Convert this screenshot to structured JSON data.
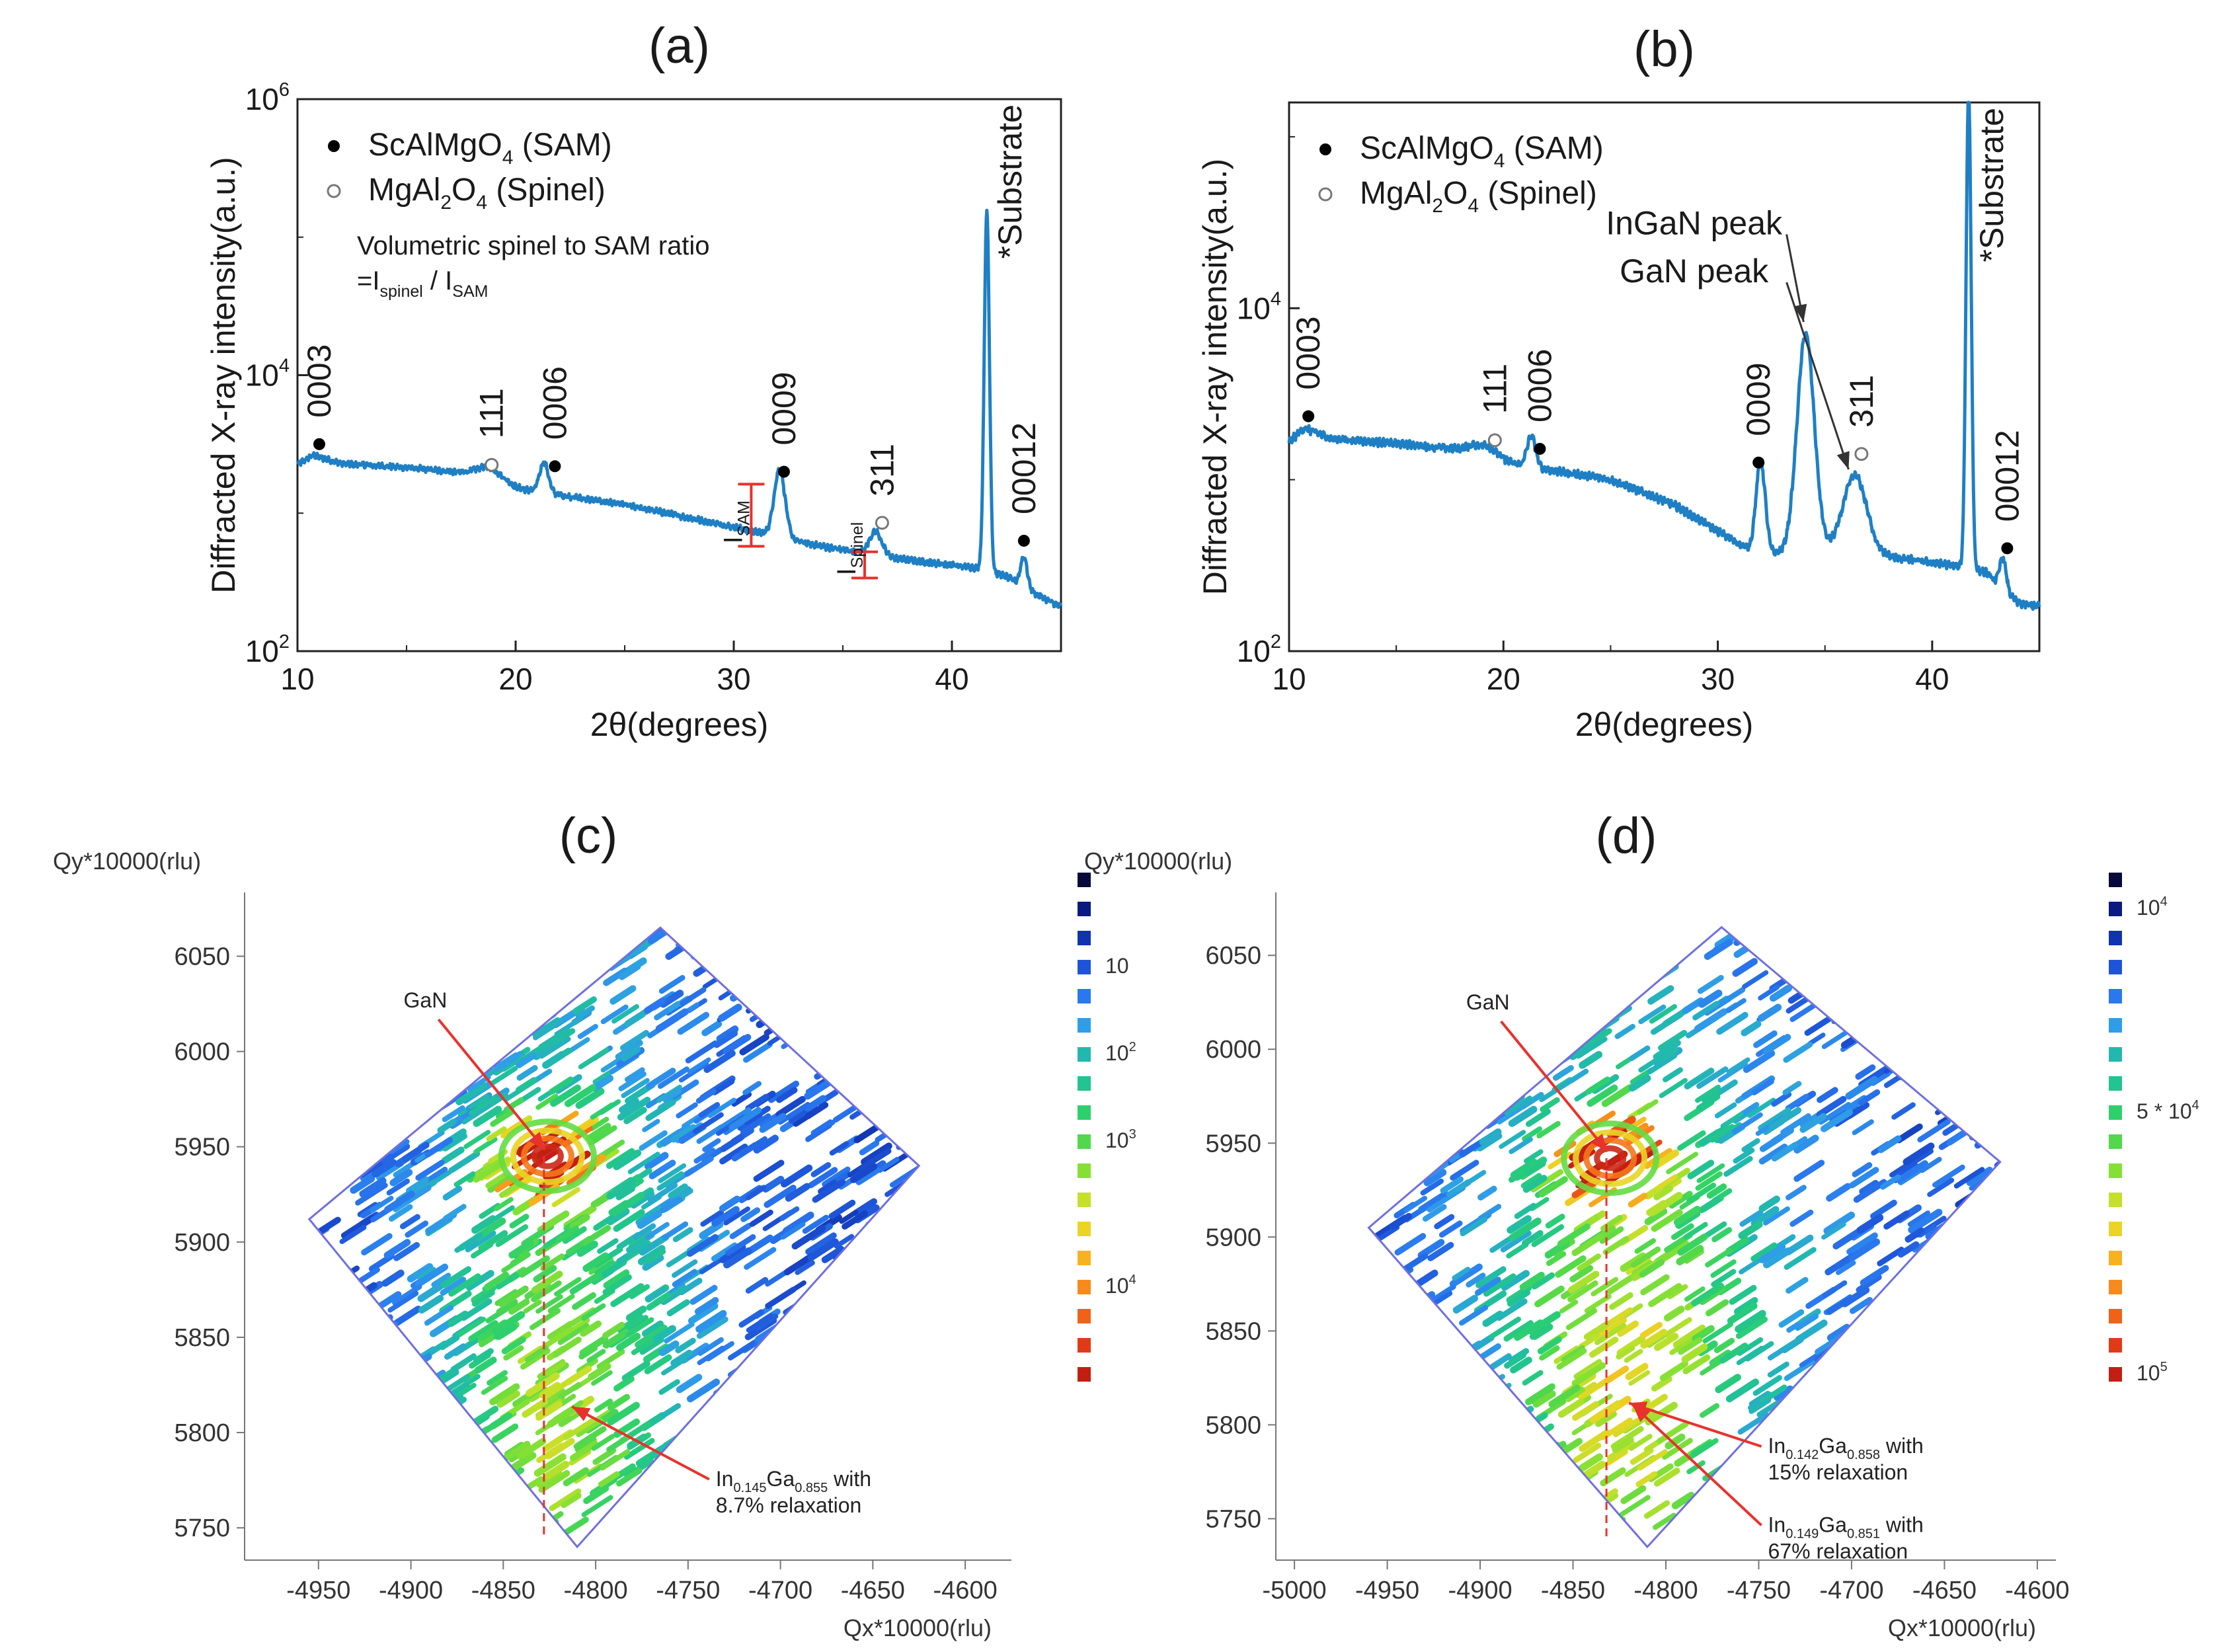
{
  "colors": {
    "trace": "#1f7fc4",
    "annotation_red": "#e8322c",
    "arrow": "#333333",
    "frame": "#6f6fe0",
    "colormap": [
      "#08083a",
      "#0a1a80",
      "#1033b0",
      "#1e55d8",
      "#2a78ee",
      "#2f9ee8",
      "#22b8b0",
      "#22c48f",
      "#2ed06c",
      "#52d84a",
      "#86e034",
      "#c4e02a",
      "#ecd424",
      "#f7b21e",
      "#f78a1c",
      "#f06218",
      "#e03a16",
      "#c21e14"
    ]
  },
  "chart_data": [
    {
      "id": "a",
      "type": "line",
      "panel_label": "(a)",
      "xlabel": "2θ(degrees)",
      "ylabel": "Diffracted X-ray intensity(a.u.)",
      "xlim": [
        10,
        45
      ],
      "ylim_log10": [
        2,
        6
      ],
      "yscale": "log",
      "x_ticks": [
        "10",
        "20",
        "30",
        "40"
      ],
      "y_ticks": [
        {
          "base": "10",
          "exp": "2"
        },
        {
          "base": "10",
          "exp": "4"
        },
        {
          "base": "10",
          "exp": "6"
        }
      ],
      "legend": [
        {
          "marker": "filled",
          "formula": [
            "ScAlMgO",
            "4",
            " (SAM)"
          ]
        },
        {
          "marker": "open",
          "formula": [
            "MgAl",
            "2",
            "O",
            "4",
            " (Spinel)"
          ]
        }
      ],
      "ratio_note": {
        "line1": "Volumetric spinel to SAM ratio",
        "eq": "=I",
        "sub1": "spinel",
        "slash": " / I",
        "sub2": "SAM"
      },
      "baseline": {
        "x": [
          10.0,
          10.7,
          12,
          15,
          18.5,
          19,
          20,
          25,
          30,
          34,
          38,
          41.3,
          42.5,
          44,
          45
        ],
        "log10_y": [
          3.35,
          3.42,
          3.36,
          3.33,
          3.28,
          3.24,
          3.18,
          3.06,
          2.9,
          2.76,
          2.66,
          2.6,
          2.54,
          2.4,
          2.32
        ]
      },
      "peaks": [
        {
          "x": 18.9,
          "height_log10": 0.07,
          "width": 0.6
        },
        {
          "x": 21.3,
          "height_log10": 0.22,
          "width": 0.2
        },
        {
          "x": 32.1,
          "height_log10": 0.49,
          "width": 0.25
        },
        {
          "x": 36.5,
          "height_log10": 0.17,
          "width": 0.28
        },
        {
          "x": 41.6,
          "height_log10": 2.6,
          "width": 0.12
        },
        {
          "x": 43.3,
          "height_log10": 0.22,
          "width": 0.15
        }
      ],
      "markers": [
        {
          "x": 11.0,
          "log10_y": 3.5,
          "type": "filled",
          "label": "0003"
        },
        {
          "x": 18.9,
          "log10_y": 3.35,
          "type": "open",
          "label": "111"
        },
        {
          "x": 21.8,
          "log10_y": 3.34,
          "type": "filled",
          "label": "0006"
        },
        {
          "x": 32.3,
          "log10_y": 3.3,
          "type": "filled",
          "label": "0009"
        },
        {
          "x": 36.8,
          "log10_y": 2.93,
          "type": "open",
          "label": "311"
        },
        {
          "x": 43.3,
          "log10_y": 2.8,
          "type": "filled",
          "label": "00012"
        }
      ],
      "substrate_label": "*Substrate",
      "i_sam": {
        "label": "I",
        "sub": "SAM",
        "x": 30.8,
        "log10_low": 2.76,
        "log10_high": 3.21
      },
      "i_spinel": {
        "label": "I",
        "sub": "Spinel",
        "x": 36.0,
        "log10_low": 2.53,
        "log10_high": 2.72
      }
    },
    {
      "id": "b",
      "type": "line",
      "panel_label": "(b)",
      "xlabel": "2θ(degrees)",
      "ylabel": "Diffracted X-ray intensity(a.u.)",
      "xlim": [
        10,
        45
      ],
      "ylim_log10": [
        2,
        5.2
      ],
      "yscale": "log",
      "x_ticks": [
        "10",
        "20",
        "30",
        "40"
      ],
      "y_ticks": [
        {
          "base": "10",
          "exp": "2"
        },
        {
          "base": "10",
          "exp": "4"
        }
      ],
      "legend": [
        {
          "marker": "filled",
          "formula": [
            "ScAlMgO",
            "4",
            " (SAM)"
          ]
        },
        {
          "marker": "open",
          "formula": [
            "MgAl",
            "2",
            "O",
            "4",
            " (Spinel)"
          ]
        }
      ],
      "baseline": {
        "x": [
          10.0,
          10.7,
          12,
          15,
          18.5,
          20,
          25,
          28,
          30,
          32,
          34,
          36,
          38,
          41,
          42.5,
          44,
          45
        ],
        "log10_y": [
          3.22,
          3.3,
          3.24,
          3.21,
          3.17,
          3.1,
          3.0,
          2.85,
          2.7,
          2.55,
          2.6,
          2.58,
          2.55,
          2.5,
          2.46,
          2.28,
          2.26
        ]
      },
      "peaks": [
        {
          "x": 19.2,
          "height_log10": 0.06,
          "width": 0.6
        },
        {
          "x": 21.3,
          "height_log10": 0.18,
          "width": 0.2
        },
        {
          "x": 32.0,
          "height_log10": 0.55,
          "width": 0.22
        },
        {
          "x": 34.1,
          "height_log10": 1.25,
          "width": 0.4
        },
        {
          "x": 36.4,
          "height_log10": 0.45,
          "width": 0.55
        },
        {
          "x": 41.7,
          "height_log10": 2.8,
          "width": 0.12
        },
        {
          "x": 43.3,
          "height_log10": 0.18,
          "width": 0.15
        }
      ],
      "markers": [
        {
          "x": 10.9,
          "log10_y": 3.37,
          "type": "filled",
          "label": "0003"
        },
        {
          "x": 19.6,
          "log10_y": 3.23,
          "type": "open",
          "label": "111"
        },
        {
          "x": 21.7,
          "log10_y": 3.18,
          "type": "filled",
          "label": "0006"
        },
        {
          "x": 31.9,
          "log10_y": 3.1,
          "type": "filled",
          "label": "0009"
        },
        {
          "x": 36.7,
          "log10_y": 3.15,
          "type": "open",
          "label": "311"
        },
        {
          "x": 43.5,
          "log10_y": 2.6,
          "type": "filled",
          "label": "00012"
        }
      ],
      "substrate_label": "*Substrate",
      "annotations": [
        {
          "text": "InGaN peak",
          "from_x": 29.2,
          "from_log10": 4.4,
          "to_x": 34.0,
          "to_log10": 3.92
        },
        {
          "text": "GaN peak",
          "from_x": 29.2,
          "from_log10": 4.12,
          "to_x": 36.1,
          "to_log10": 3.06
        }
      ]
    },
    {
      "id": "c",
      "type": "heatmap",
      "panel_label": "(c)",
      "xlabel": "Qx*10000(rlu)",
      "ylabel": "Qy*10000(rlu)",
      "xlim": [
        -4990,
        -4575
      ],
      "ylim": [
        5740,
        6080
      ],
      "x_ticks": [
        -4950,
        -4900,
        -4850,
        -4800,
        -4750,
        -4700,
        -4650,
        -4600
      ],
      "y_ticks": [
        5750,
        5800,
        5850,
        5900,
        5950,
        6000,
        6050
      ],
      "frame_corners": [
        [
          -4765,
          6065
        ],
        [
          -4625,
          5940
        ],
        [
          -4810,
          5740
        ],
        [
          -4955,
          5912
        ]
      ],
      "dashed_qx": -4828,
      "gan_peak": {
        "qx": -4826,
        "qy": 5945
      },
      "layer_peak": {
        "qx": -4820,
        "qy": 5812
      },
      "gan_label": "GaN",
      "annotations": [
        {
          "lines": [
            {
              "parts": [
                [
                  "In",
                  ""
                ],
                [
                  "0.145",
                  "sub"
                ],
                [
                  "Ga",
                  ""
                ],
                [
                  "0.855",
                  "sub"
                ],
                [
                  " with",
                  ""
                ]
              ]
            },
            {
              "parts": [
                [
                  "8.7% relaxation",
                  ""
                ]
              ]
            }
          ],
          "target_qx": -4815,
          "target_qy": 5815,
          "text_qx": -4735,
          "text_qy": 5772
        }
      ],
      "colorbar_labels": [
        {
          "level": 3,
          "base": "10",
          "exp": ""
        },
        {
          "level": 6,
          "base": "10",
          "exp": "2"
        },
        {
          "level": 9,
          "base": "10",
          "exp": "3"
        },
        {
          "level": 14,
          "base": "10",
          "exp": "4"
        }
      ]
    },
    {
      "id": "d",
      "type": "heatmap",
      "panel_label": "(d)",
      "xlabel": "Qx*10000(rlu)",
      "ylabel": "Qy*10000(rlu)",
      "xlim": [
        -5010,
        -4590
      ],
      "ylim": [
        5735,
        6080
      ],
      "x_ticks": [
        -5000,
        -4950,
        -4900,
        -4850,
        -4800,
        -4750,
        -4700,
        -4650,
        -4600
      ],
      "y_ticks": [
        5750,
        5800,
        5850,
        5900,
        5950,
        6000,
        6050
      ],
      "frame_corners": [
        [
          -4770,
          6065
        ],
        [
          -4620,
          5940
        ],
        [
          -4810,
          5735
        ],
        [
          -4960,
          5905
        ]
      ],
      "dashed_qx": -4832,
      "gan_peak": {
        "qx": -4830,
        "qy": 5942
      },
      "layer_peak": {
        "qx": -4822,
        "qy": 5808
      },
      "gan_label": "GaN",
      "annotations": [
        {
          "lines": [
            {
              "parts": [
                [
                  "In",
                  ""
                ],
                [
                  "0.142",
                  "sub"
                ],
                [
                  "Ga",
                  ""
                ],
                [
                  "0.858",
                  "sub"
                ],
                [
                  " with",
                  ""
                ]
              ]
            },
            {
              "parts": [
                [
                  "15% relaxation",
                  ""
                ]
              ]
            }
          ],
          "target_qx": -4822,
          "target_qy": 5813,
          "text_qx": -4745,
          "text_qy": 5785
        },
        {
          "lines": [
            {
              "parts": [
                [
                  "In",
                  ""
                ],
                [
                  "0.149",
                  "sub"
                ],
                [
                  "Ga",
                  ""
                ],
                [
                  "0.851",
                  "sub"
                ],
                [
                  " with",
                  ""
                ]
              ]
            },
            {
              "parts": [
                [
                  "67% relaxation",
                  ""
                ]
              ]
            }
          ],
          "target_qx": -4820,
          "target_qy": 5812,
          "text_qx": -4745,
          "text_qy": 5743
        }
      ],
      "colorbar_labels": [
        {
          "level": 1,
          "base": "10",
          "exp": "4"
        },
        {
          "level": 8,
          "base": "5 * 10",
          "exp": "4"
        },
        {
          "level": 17,
          "base": "10",
          "exp": "5"
        }
      ]
    }
  ]
}
